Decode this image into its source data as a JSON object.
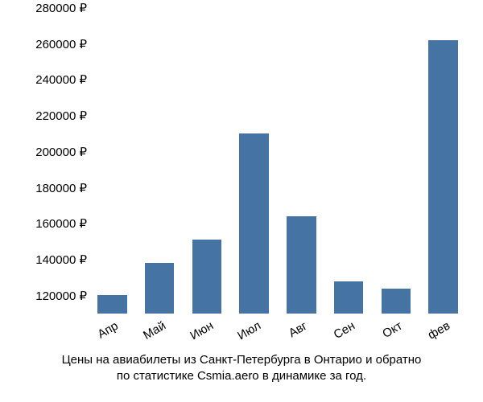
{
  "chart": {
    "type": "bar",
    "background_color": "#ffffff",
    "bar_color": "#4573a3",
    "text_color": "#000000",
    "currency_suffix": " ₽",
    "ylim": [
      110000,
      280000
    ],
    "ytick_step": 20000,
    "y_ticks": [
      120000,
      140000,
      160000,
      180000,
      200000,
      220000,
      240000,
      260000,
      280000
    ],
    "y_tick_labels": [
      "120000 ₽",
      "140000 ₽",
      "160000 ₽",
      "180000 ₽",
      "200000 ₽",
      "220000 ₽",
      "240000 ₽",
      "260000 ₽",
      "280000 ₽"
    ],
    "categories": [
      "Апр",
      "Май",
      "Июн",
      "Июл",
      "Авг",
      "Сен",
      "Окт",
      "фев"
    ],
    "values": [
      120500,
      138000,
      151000,
      210000,
      164000,
      128000,
      124000,
      262000
    ],
    "bar_width_ratio": 0.62,
    "label_fontsize": 15,
    "x_label_rotation_deg": -30,
    "caption_line1": "Цены на авиабилеты из Санкт-Петербурга в Онтарио и обратно",
    "caption_line2": "по статистике Csmia.aero в динамике за год."
  }
}
